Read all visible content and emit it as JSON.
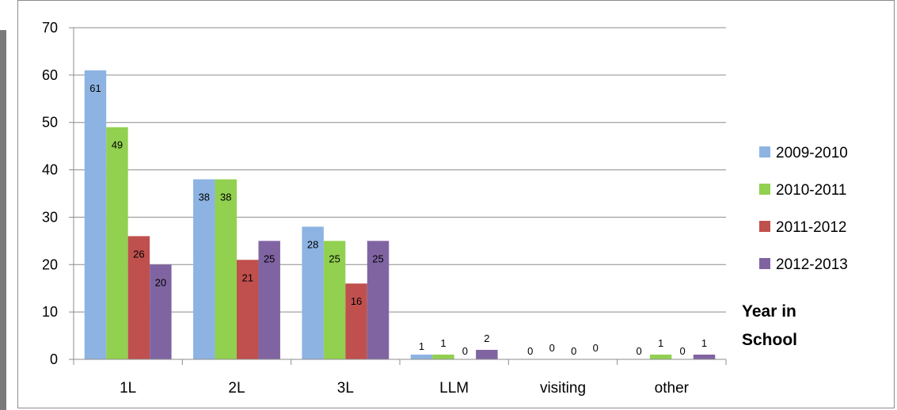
{
  "chart_data": {
    "type": "bar",
    "categories": [
      "1L",
      "2L",
      "3L",
      "LLM",
      "visiting",
      "other"
    ],
    "series": [
      {
        "name": "2009-2010",
        "color": "#8db3e2",
        "values": [
          61,
          38,
          28,
          1,
          0,
          0
        ]
      },
      {
        "name": "2010-2011",
        "color": "#92d050",
        "values": [
          49,
          38,
          25,
          1,
          0,
          1
        ]
      },
      {
        "name": "2011-2012",
        "color": "#c0504d",
        "values": [
          26,
          21,
          16,
          0,
          0,
          0
        ]
      },
      {
        "name": "2012-2013",
        "color": "#8064a2",
        "values": [
          20,
          25,
          25,
          2,
          0,
          1
        ]
      }
    ],
    "ylim": [
      0,
      70
    ],
    "yticks": [
      0,
      10,
      20,
      30,
      40,
      50,
      60,
      70
    ],
    "xlabel": "Year in School",
    "ylabel": "",
    "legend_position": "right",
    "grid": true
  }
}
